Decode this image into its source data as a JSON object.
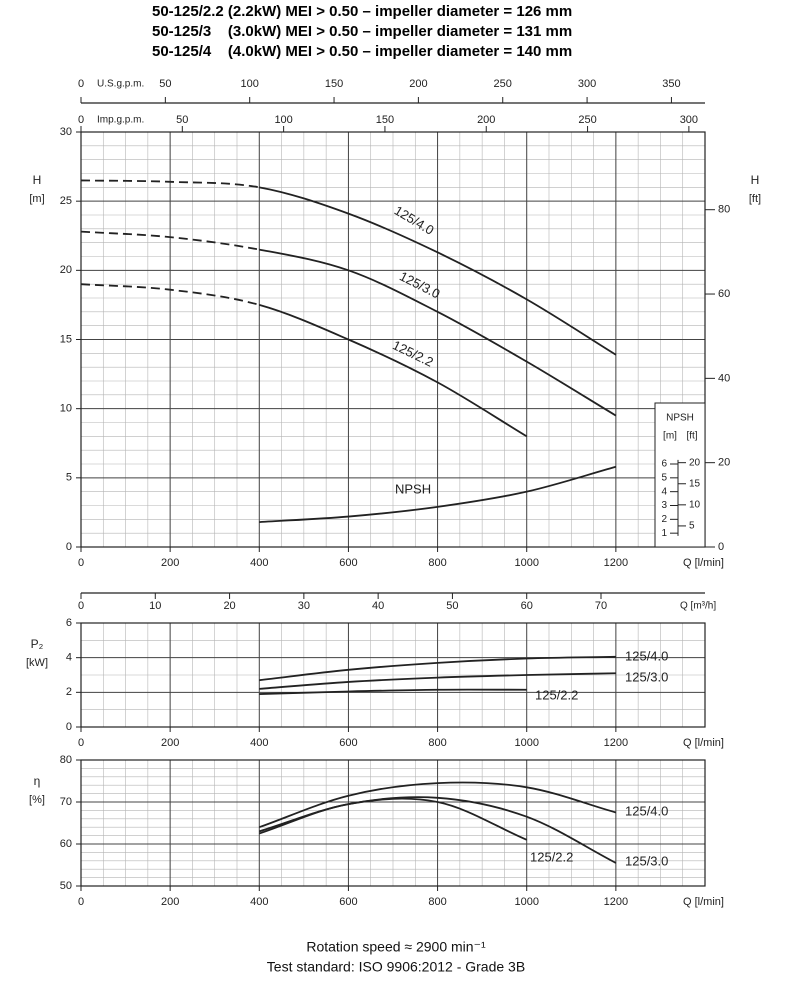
{
  "title": [
    "50-125/2.2 (2.2kW) MEI > 0.50 – impeller diameter = 126 mm",
    "50-125/3    (3.0kW) MEI > 0.50 – impeller diameter = 131 mm",
    "50-125/4    (4.0kW) MEI > 0.50 – impeller diameter = 140 mm"
  ],
  "footer": [
    "Rotation speed ≈ 2900 min⁻¹",
    "Test standard: ISO 9906:2012 - Grade 3B"
  ],
  "chart_data": [
    {
      "type": "line",
      "ylabel": [
        "H",
        "[m]"
      ],
      "y2label": [
        "H",
        "[ft]"
      ],
      "xlabel": "Q [l/min]",
      "xlim": [
        0,
        1400
      ],
      "xticks": [
        0,
        200,
        400,
        600,
        800,
        1000,
        1200
      ],
      "ylim": [
        0,
        30
      ],
      "yticks": [
        0,
        5,
        10,
        15,
        20,
        25,
        30
      ],
      "y2lim": [
        0,
        98.43
      ],
      "y2ticks": [
        0,
        20,
        40,
        60,
        80
      ],
      "grid": true,
      "minor_grid": {
        "x": 50,
        "y": 1
      },
      "top_axes": [
        {
          "label": "U.S.g.p.m.",
          "xlim": [
            0,
            369.9
          ],
          "xticks": [
            0,
            50,
            100,
            150,
            200,
            250,
            300,
            350
          ]
        },
        {
          "label": "Imp.g.p.m.",
          "xlim": [
            0,
            307.96
          ],
          "xticks": [
            0,
            50,
            100,
            150,
            200,
            250,
            300
          ]
        }
      ],
      "series": [
        {
          "name": "125/4.0",
          "color": "#222222",
          "x": [
            0,
            200,
            400,
            600,
            800,
            1000,
            1200
          ],
          "values": [
            26.5,
            26.4,
            26.0,
            24.1,
            21.3,
            17.9,
            13.9
          ],
          "solid_from": 400
        },
        {
          "name": "125/3.0",
          "color": "#222222",
          "x": [
            0,
            200,
            400,
            600,
            800,
            1000,
            1200
          ],
          "values": [
            22.8,
            22.4,
            21.5,
            20.0,
            17.0,
            13.4,
            9.5
          ],
          "solid_from": 400
        },
        {
          "name": "125/2.2",
          "color": "#222222",
          "x": [
            0,
            200,
            400,
            600,
            800,
            1000
          ],
          "values": [
            19.0,
            18.6,
            17.5,
            15.0,
            11.9,
            8.0
          ],
          "solid_from": 400
        },
        {
          "name": "NPSH",
          "color": "#222222",
          "x": [
            400,
            600,
            800,
            1000,
            1200
          ],
          "values": [
            1.8,
            2.2,
            2.9,
            4.0,
            5.8
          ]
        }
      ],
      "npsh_scale": {
        "title": "NPSH",
        "units": [
          "[m]",
          "[ft]"
        ],
        "m_ticks": [
          1,
          2,
          3,
          4,
          5,
          6
        ],
        "ft_ticks": [
          5,
          10,
          15,
          20
        ]
      }
    },
    {
      "type": "line",
      "ylabel": [
        "P₂",
        "[kW]"
      ],
      "xlabel": "Q [l/min]",
      "xlim": [
        0,
        1400
      ],
      "xticks": [
        0,
        200,
        400,
        600,
        800,
        1000,
        1200
      ],
      "ylim": [
        0,
        6
      ],
      "yticks": [
        0,
        2,
        4,
        6
      ],
      "grid": true,
      "minor_grid": {
        "x": 50,
        "y": 1
      },
      "top_axes": [
        {
          "label": "Q [m³/h]",
          "xlim": [
            0,
            84
          ],
          "xticks": [
            0,
            10,
            20,
            30,
            40,
            50,
            60,
            70
          ]
        }
      ],
      "series": [
        {
          "name": "125/4.0",
          "color": "#222222",
          "x": [
            400,
            600,
            800,
            1000,
            1200
          ],
          "values": [
            2.7,
            3.3,
            3.7,
            3.95,
            4.05
          ]
        },
        {
          "name": "125/3.0",
          "color": "#222222",
          "x": [
            400,
            600,
            800,
            1000,
            1200
          ],
          "values": [
            2.2,
            2.6,
            2.85,
            3.0,
            3.1
          ]
        },
        {
          "name": "125/2.2",
          "color": "#222222",
          "x": [
            400,
            600,
            800,
            1000
          ],
          "values": [
            1.9,
            2.05,
            2.15,
            2.15
          ]
        }
      ]
    },
    {
      "type": "line",
      "ylabel": [
        "η",
        "[%]"
      ],
      "xlabel": "Q [l/min]",
      "xlim": [
        0,
        1400
      ],
      "xticks": [
        0,
        200,
        400,
        600,
        800,
        1000,
        1200
      ],
      "ylim": [
        50,
        80
      ],
      "yticks": [
        50,
        60,
        70,
        80
      ],
      "grid": true,
      "minor_grid": {
        "x": 50,
        "y": 2
      },
      "series": [
        {
          "name": "125/4.0",
          "color": "#222222",
          "x": [
            400,
            600,
            800,
            1000,
            1200
          ],
          "values": [
            64,
            71.5,
            74.5,
            73.5,
            67.5
          ]
        },
        {
          "name": "125/3.0",
          "color": "#222222",
          "x": [
            400,
            600,
            800,
            1000,
            1200
          ],
          "values": [
            63,
            69.5,
            71,
            66.5,
            55.5
          ]
        },
        {
          "name": "125/2.2",
          "color": "#222222",
          "x": [
            400,
            600,
            800,
            1000
          ],
          "values": [
            62.5,
            69.5,
            70,
            61
          ]
        }
      ]
    }
  ]
}
